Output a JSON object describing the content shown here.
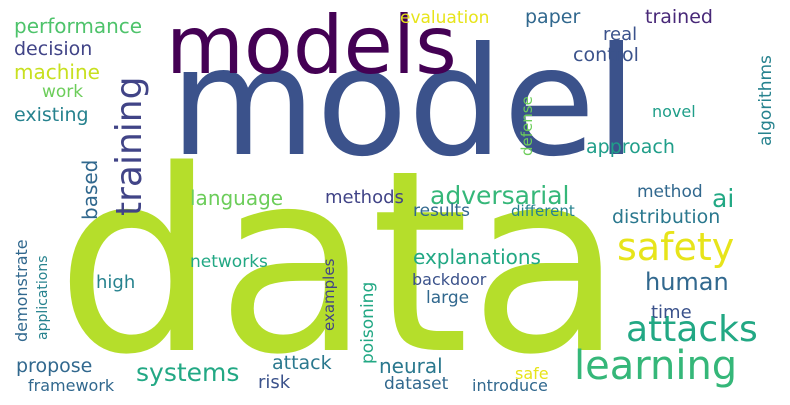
{
  "wordcloud": {
    "palette": {
      "lime": "#b5de2b",
      "lime_light": "#c8e020",
      "yellow": "#e7e41a",
      "green": "#6ccd5a",
      "green_mid": "#4ec36b",
      "teal_green": "#35b779",
      "teal": "#22a884",
      "teal_blue": "#1f9e89",
      "cyan": "#26828e",
      "blue_teal": "#2a788e",
      "blue": "#31688e",
      "indigo": "#3b528b",
      "indigo_dark": "#414487",
      "violet": "#482878",
      "purple": "#440154"
    },
    "words": [
      {
        "text": "model"
      },
      {
        "text": "data"
      },
      {
        "text": "models"
      },
      {
        "text": "learning"
      },
      {
        "text": "safety"
      },
      {
        "text": "attacks"
      },
      {
        "text": "training"
      },
      {
        "text": "adversarial"
      },
      {
        "text": "systems"
      },
      {
        "text": "human"
      },
      {
        "text": "explanations"
      },
      {
        "text": "approach"
      },
      {
        "text": "neural"
      },
      {
        "text": "ai"
      },
      {
        "text": "performance"
      },
      {
        "text": "machine"
      },
      {
        "text": "decision"
      },
      {
        "text": "existing"
      },
      {
        "text": "work"
      },
      {
        "text": "evaluation"
      },
      {
        "text": "paper"
      },
      {
        "text": "trained"
      },
      {
        "text": "control"
      },
      {
        "text": "real"
      },
      {
        "text": "novel"
      },
      {
        "text": "defense"
      },
      {
        "text": "algorithms"
      },
      {
        "text": "based"
      },
      {
        "text": "language"
      },
      {
        "text": "methods"
      },
      {
        "text": "method"
      },
      {
        "text": "results"
      },
      {
        "text": "different"
      },
      {
        "text": "distribution"
      },
      {
        "text": "networks"
      },
      {
        "text": "high"
      },
      {
        "text": "demonstrate"
      },
      {
        "text": "applications"
      },
      {
        "text": "examples"
      },
      {
        "text": "poisoning"
      },
      {
        "text": "backdoor"
      },
      {
        "text": "large"
      },
      {
        "text": "time"
      },
      {
        "text": "propose"
      },
      {
        "text": "attack"
      },
      {
        "text": "risk"
      },
      {
        "text": "framework"
      },
      {
        "text": "dataset"
      },
      {
        "text": "introduce"
      },
      {
        "text": "safe"
      }
    ]
  }
}
